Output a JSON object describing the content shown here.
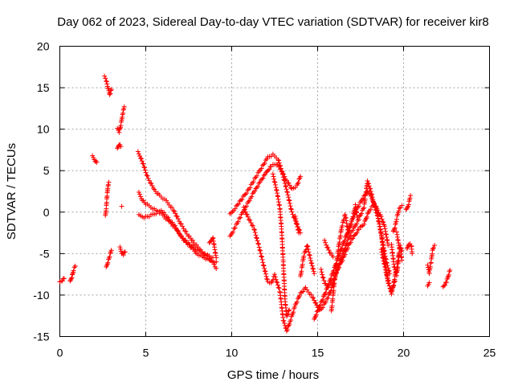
{
  "chart_data": {
    "type": "scatter",
    "title": "Day 062 of 2023, Sidereal Day-to-day VTEC variation (SDTVAR) for receiver kir8",
    "xlabel": "GPS time / hours",
    "ylabel": "SDTVAR / TECUs",
    "xlim": [
      0,
      25
    ],
    "ylim": [
      -15,
      20
    ],
    "xticks": [
      0,
      5,
      10,
      15,
      20,
      25
    ],
    "yticks": [
      -15,
      -10,
      -5,
      0,
      5,
      10,
      15,
      20
    ],
    "grid": true,
    "marker": "+",
    "color": "#ff0000",
    "series": [
      {
        "name": "SDTVAR",
        "segments": [
          [
            [
              0.0,
              -8.5
            ],
            [
              0.15,
              -8.2
            ],
            [
              0.25,
              -8.0
            ]
          ],
          [
            [
              0.6,
              -8.4
            ],
            [
              0.7,
              -7.8
            ],
            [
              0.8,
              -7.0
            ],
            [
              0.9,
              -6.5
            ]
          ],
          [
            [
              1.9,
              6.7
            ],
            [
              2.05,
              6.2
            ],
            [
              2.15,
              6.0
            ]
          ],
          [
            [
              2.6,
              16.3
            ],
            [
              2.7,
              15.9
            ],
            [
              2.8,
              15.0
            ],
            [
              2.9,
              14.2
            ],
            [
              3.0,
              14.8
            ]
          ],
          [
            [
              2.65,
              -0.5
            ],
            [
              2.7,
              0.5
            ],
            [
              2.75,
              2.0
            ],
            [
              2.8,
              3.2
            ],
            [
              2.85,
              3.6
            ]
          ],
          [
            [
              2.7,
              -6.7
            ],
            [
              2.8,
              -6.0
            ],
            [
              2.9,
              -5.3
            ],
            [
              3.0,
              -4.6
            ]
          ],
          [
            [
              3.35,
              7.6
            ],
            [
              3.45,
              8.2
            ],
            [
              3.55,
              7.9
            ]
          ],
          [
            [
              3.35,
              10.0
            ],
            [
              3.45,
              9.7
            ],
            [
              3.55,
              10.5
            ],
            [
              3.65,
              11.8
            ],
            [
              3.75,
              12.7
            ]
          ],
          [
            [
              3.6,
              0.7
            ]
          ],
          [
            [
              3.5,
              -4.3
            ],
            [
              3.6,
              -4.9
            ],
            [
              3.7,
              -5.1
            ],
            [
              3.8,
              -4.8
            ]
          ],
          [
            [
              4.55,
              7.2
            ],
            [
              4.7,
              6.6
            ],
            [
              4.9,
              5.5
            ],
            [
              5.0,
              4.8
            ],
            [
              5.2,
              3.8
            ],
            [
              5.5,
              2.7
            ],
            [
              5.8,
              2.0
            ],
            [
              6.2,
              1.3
            ],
            [
              6.6,
              0.3
            ],
            [
              7.0,
              -1.3
            ],
            [
              7.4,
              -2.6
            ],
            [
              7.8,
              -3.7
            ],
            [
              8.2,
              -4.6
            ],
            [
              8.6,
              -5.4
            ],
            [
              8.9,
              -6.1
            ],
            [
              9.1,
              -6.8
            ]
          ],
          [
            [
              4.6,
              2.3
            ],
            [
              4.8,
              1.5
            ],
            [
              5.0,
              1.0
            ],
            [
              5.3,
              0.6
            ],
            [
              5.7,
              0.1
            ],
            [
              6.0,
              -0.4
            ],
            [
              6.4,
              -1.2
            ],
            [
              6.8,
              -2.2
            ],
            [
              7.2,
              -3.3
            ],
            [
              7.6,
              -4.2
            ],
            [
              8.0,
              -5.0
            ],
            [
              8.4,
              -5.5
            ],
            [
              8.8,
              -5.9
            ],
            [
              9.1,
              -6.0
            ]
          ],
          [
            [
              4.6,
              -0.4
            ],
            [
              4.9,
              -0.6
            ],
            [
              5.2,
              -0.5
            ],
            [
              5.5,
              -0.2
            ],
            [
              5.9,
              0.2
            ],
            [
              6.3,
              -0.7
            ],
            [
              6.7,
              -1.7
            ],
            [
              7.0,
              -2.8
            ],
            [
              7.4,
              -3.6
            ],
            [
              7.9,
              -4.5
            ],
            [
              8.4,
              -5.0
            ],
            [
              8.9,
              -5.5
            ]
          ],
          [
            [
              8.7,
              -3.8
            ],
            [
              8.9,
              -3.0
            ],
            [
              9.1,
              -5.5
            ]
          ],
          [
            [
              9.9,
              -0.3
            ],
            [
              10.2,
              0.5
            ],
            [
              10.6,
              1.6
            ],
            [
              11.0,
              2.8
            ],
            [
              11.4,
              4.2
            ],
            [
              11.8,
              5.6
            ],
            [
              12.1,
              6.6
            ],
            [
              12.4,
              6.9
            ],
            [
              12.7,
              6.4
            ],
            [
              12.9,
              5.0
            ],
            [
              13.1,
              3.5
            ],
            [
              13.3,
              1.8
            ],
            [
              13.5,
              0.0
            ],
            [
              13.8,
              -1.5
            ],
            [
              14.0,
              -2.5
            ]
          ],
          [
            [
              9.9,
              -3.0
            ],
            [
              10.2,
              -1.8
            ],
            [
              10.5,
              -0.6
            ],
            [
              10.8,
              0.6
            ],
            [
              11.1,
              1.7
            ],
            [
              11.4,
              2.8
            ],
            [
              11.7,
              3.8
            ],
            [
              12.0,
              4.7
            ],
            [
              12.3,
              5.6
            ],
            [
              12.6,
              5.8
            ],
            [
              12.9,
              5.0
            ],
            [
              13.2,
              3.8
            ],
            [
              13.5,
              2.8
            ],
            [
              13.8,
              3.2
            ],
            [
              14.0,
              4.3
            ]
          ],
          [
            [
              10.7,
              0.5
            ],
            [
              11.0,
              -0.8
            ],
            [
              11.3,
              -2.0
            ],
            [
              11.6,
              -4.2
            ],
            [
              11.9,
              -6.8
            ],
            [
              12.1,
              -8.4
            ],
            [
              12.3,
              -8.6
            ],
            [
              12.5,
              -7.6
            ],
            [
              12.8,
              -9.5
            ],
            [
              13.0,
              -13.0
            ],
            [
              13.2,
              -14.3
            ],
            [
              13.4,
              -13.2
            ],
            [
              13.7,
              -11.2
            ],
            [
              14.0,
              -9.8
            ],
            [
              14.3,
              -9.2
            ],
            [
              14.7,
              -10.2
            ],
            [
              15.0,
              -11.5
            ]
          ],
          [
            [
              12.4,
              4.5
            ],
            [
              12.6,
              2.8
            ],
            [
              12.8,
              0.5
            ],
            [
              12.9,
              -2.0
            ],
            [
              13.0,
              -6.0
            ],
            [
              13.1,
              -10.5
            ],
            [
              13.2,
              -12.6
            ],
            [
              13.35,
              -11.8
            ]
          ],
          [
            [
              13.7,
              -0.6
            ],
            [
              13.9,
              -2.5
            ]
          ],
          [
            [
              14.0,
              -7.8
            ],
            [
              14.2,
              -5.2
            ],
            [
              14.4,
              -4.0
            ],
            [
              14.6,
              -5.8
            ],
            [
              14.8,
              -7.4
            ]
          ],
          [
            [
              14.8,
              -13.0
            ],
            [
              15.0,
              -11.8
            ],
            [
              15.3,
              -10.5
            ],
            [
              15.6,
              -8.9
            ],
            [
              15.9,
              -7.2
            ],
            [
              16.2,
              -5.4
            ],
            [
              16.5,
              -3.8
            ],
            [
              16.8,
              -2.0
            ],
            [
              17.1,
              -0.5
            ],
            [
              17.4,
              0.8
            ],
            [
              17.7,
              2.0
            ],
            [
              17.9,
              2.6
            ],
            [
              18.1,
              1.9
            ],
            [
              18.4,
              0.5
            ],
            [
              18.6,
              -1.5
            ],
            [
              18.8,
              -3.8
            ],
            [
              19.0,
              -6.0
            ],
            [
              19.2,
              -7.4
            ]
          ],
          [
            [
              15.0,
              -12.0
            ],
            [
              15.3,
              -11.4
            ],
            [
              15.6,
              -10.3
            ],
            [
              15.9,
              -8.7
            ],
            [
              16.2,
              -6.5
            ],
            [
              16.5,
              -4.8
            ],
            [
              16.8,
              -3.2
            ],
            [
              17.1,
              -2.0
            ],
            [
              17.4,
              -0.8
            ],
            [
              17.7,
              0.6
            ],
            [
              17.9,
              3.8
            ],
            [
              18.1,
              2.5
            ],
            [
              18.3,
              0.8
            ],
            [
              18.5,
              -0.5
            ],
            [
              18.7,
              -2.7
            ],
            [
              18.9,
              -5.8
            ],
            [
              19.1,
              -8.5
            ],
            [
              19.3,
              -9.6
            ],
            [
              19.5,
              -8.3
            ]
          ],
          [
            [
              15.2,
              -7.0
            ],
            [
              15.4,
              -8.5
            ],
            [
              15.6,
              -9.0
            ],
            [
              15.9,
              -8.2
            ],
            [
              16.2,
              -6.8
            ],
            [
              16.5,
              -5.5
            ],
            [
              16.8,
              -4.0
            ],
            [
              17.1,
              -3.0
            ],
            [
              17.4,
              -2.0
            ],
            [
              17.7,
              -1.4
            ],
            [
              18.0,
              0.2
            ],
            [
              18.3,
              1.0
            ],
            [
              18.5,
              0.2
            ],
            [
              18.7,
              -0.6
            ],
            [
              18.9,
              -1.8
            ],
            [
              19.1,
              -4.0
            ]
          ],
          [
            [
              15.4,
              -3.5
            ],
            [
              15.7,
              -4.8
            ],
            [
              15.9,
              -5.4
            ]
          ],
          [
            [
              15.8,
              -12.0
            ],
            [
              16.0,
              -8.0
            ],
            [
              16.2,
              -4.5
            ],
            [
              16.4,
              -1.8
            ],
            [
              16.6,
              -0.3
            ],
            [
              16.8,
              -2.6
            ],
            [
              17.0,
              -1.0
            ],
            [
              17.2,
              0.8
            ],
            [
              17.3,
              -0.6
            ]
          ],
          [
            [
              18.7,
              -4.6
            ],
            [
              19.0,
              -7.4
            ],
            [
              19.3,
              -9.8
            ],
            [
              19.6,
              -6.8
            ],
            [
              19.8,
              -4.0
            ],
            [
              19.9,
              -5.8
            ]
          ],
          [
            [
              19.3,
              -4.0
            ],
            [
              19.45,
              -6.5
            ],
            [
              19.6,
              -7.6
            ],
            [
              19.75,
              -5.2
            ]
          ],
          [
            [
              19.4,
              -2.4
            ],
            [
              19.5,
              -1.8
            ],
            [
              19.6,
              -0.8
            ],
            [
              19.75,
              0.5
            ],
            [
              19.9,
              0.8
            ]
          ],
          [
            [
              19.6,
              -2.5
            ],
            [
              19.75,
              -4.2
            ],
            [
              19.9,
              -4.6
            ]
          ],
          [
            [
              20.15,
              0.2
            ],
            [
              20.3,
              1.0
            ],
            [
              20.4,
              2.0
            ]
          ],
          [
            [
              20.2,
              -4.5
            ],
            [
              20.3,
              -3.8
            ],
            [
              20.45,
              -4.0
            ],
            [
              20.5,
              -5.0
            ]
          ],
          [
            [
              21.4,
              -6.5
            ],
            [
              21.5,
              -7.3
            ],
            [
              21.6,
              -6.0
            ],
            [
              21.7,
              -4.4
            ],
            [
              21.8,
              -4.0
            ]
          ],
          [
            [
              21.4,
              -9.0
            ],
            [
              21.5,
              -8.5
            ]
          ],
          [
            [
              22.3,
              -9.1
            ],
            [
              22.4,
              -8.7
            ],
            [
              22.5,
              -8.4
            ],
            [
              22.6,
              -7.7
            ],
            [
              22.7,
              -7.0
            ]
          ]
        ]
      }
    ]
  }
}
